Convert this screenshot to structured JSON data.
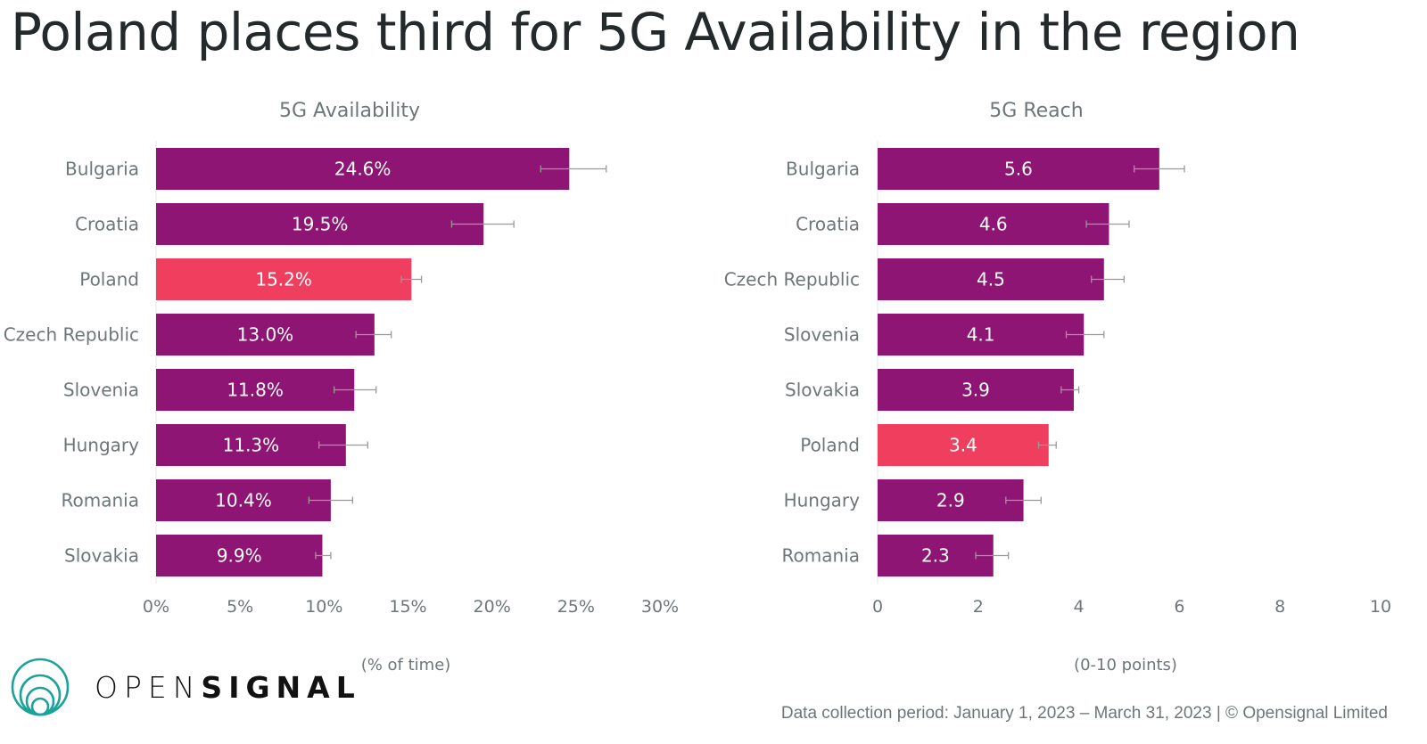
{
  "title": "Poland places third for 5G Availability in the region",
  "brand": {
    "name_light": "OPEN",
    "name_bold": "SIGNAL",
    "color": "#1ba39a"
  },
  "footer": "Data collection period: January 1, 2023 – March 31, 2023 | © Opensignal Limited",
  "colors": {
    "bar": "#8e1573",
    "highlight": "#ef3e5e",
    "text": "#6e7679",
    "errorbar": "#9a9a9a"
  },
  "chart_data": [
    {
      "type": "bar",
      "orientation": "horizontal",
      "title": "5G Availability",
      "xlabel": "(% of time)",
      "ylabel": "",
      "xlim": [
        0,
        30
      ],
      "xticks": [
        0,
        5,
        10,
        15,
        20,
        25,
        30
      ],
      "xtick_labels": [
        "0%",
        "5%",
        "10%",
        "15%",
        "20%",
        "25%",
        "30%"
      ],
      "categories": [
        "Bulgaria",
        "Croatia",
        "Poland",
        "Czech Republic",
        "Slovenia",
        "Hungary",
        "Romania",
        "Slovakia"
      ],
      "values": [
        24.6,
        19.5,
        15.2,
        13.0,
        11.8,
        11.3,
        10.4,
        9.9
      ],
      "value_labels": [
        "24.6%",
        "19.5%",
        "15.2%",
        "13.0%",
        "11.8%",
        "11.3%",
        "10.4%",
        "9.9%"
      ],
      "error_low": [
        22.9,
        17.6,
        14.6,
        11.9,
        10.6,
        9.7,
        9.1,
        9.5
      ],
      "error_high": [
        26.8,
        21.3,
        15.8,
        14.0,
        13.1,
        12.6,
        11.7,
        10.4
      ],
      "highlight": "Poland",
      "grid": false
    },
    {
      "type": "bar",
      "orientation": "horizontal",
      "title": "5G Reach",
      "xlabel": "(0-10 points)",
      "ylabel": "",
      "xlim": [
        0,
        10
      ],
      "xticks": [
        0,
        2,
        4,
        6,
        8,
        10
      ],
      "xtick_labels": [
        "0",
        "2",
        "4",
        "6",
        "8",
        "10"
      ],
      "categories": [
        "Bulgaria",
        "Croatia",
        "Czech Republic",
        "Slovenia",
        "Slovakia",
        "Poland",
        "Hungary",
        "Romania"
      ],
      "values": [
        5.6,
        4.6,
        4.5,
        4.1,
        3.9,
        3.4,
        2.9,
        2.3
      ],
      "value_labels": [
        "5.6",
        "4.6",
        "4.5",
        "4.1",
        "3.9",
        "3.4",
        "2.9",
        "2.3"
      ],
      "error_low": [
        5.1,
        4.15,
        4.25,
        3.75,
        3.65,
        3.2,
        2.55,
        1.95
      ],
      "error_high": [
        6.1,
        5.0,
        4.9,
        4.5,
        4.0,
        3.55,
        3.25,
        2.6
      ],
      "highlight": "Poland",
      "grid": false
    }
  ]
}
